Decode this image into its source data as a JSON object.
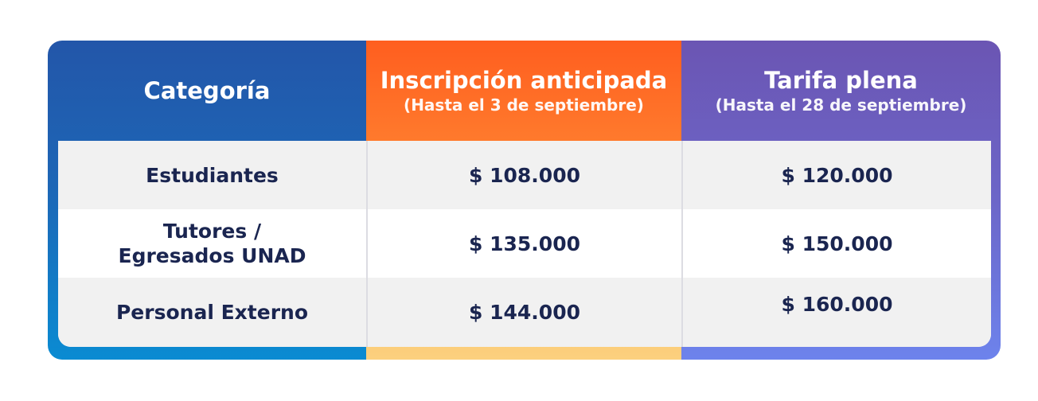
{
  "table": {
    "headers": {
      "category": {
        "title": "Categoría"
      },
      "early": {
        "title": "Inscripción anticipada",
        "subtitle": "(Hasta el 3 de septiembre)"
      },
      "full": {
        "title": "Tarifa plena",
        "subtitle": "(Hasta el 28 de septiembre)"
      }
    },
    "rows": [
      {
        "category": "Estudiantes",
        "early": "$ 108.000",
        "full": "$ 120.000"
      },
      {
        "category": "Tutores / Egresados UNAD",
        "early": "$ 135.000",
        "full": "$ 150.000"
      },
      {
        "category": "Personal Externo",
        "early": "$ 144.000",
        "full": "$ 160.000"
      }
    ]
  },
  "colors": {
    "category_header": "#1f5fb0",
    "early_header": "#ff6a23",
    "full_header": "#6e5ab8",
    "text_dark": "#1a2550",
    "row_shade": "#f1f1f1"
  }
}
